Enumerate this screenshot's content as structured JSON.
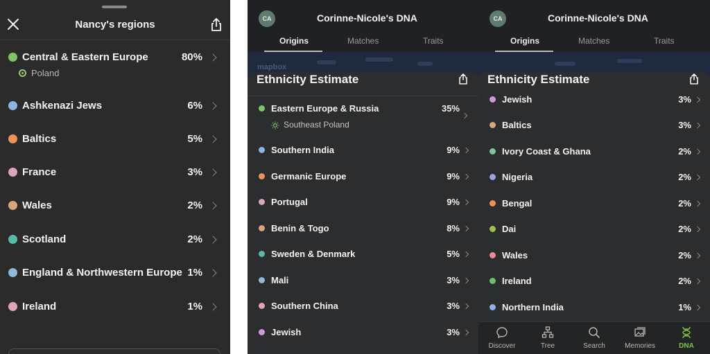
{
  "left_panel": {
    "title": "Nancy's regions",
    "close_icon": "close-icon",
    "share_icon": "share-icon",
    "regions": [
      {
        "name": "Central & Eastern Europe",
        "percent": "80%",
        "color": "#7ec46a",
        "sub": "Poland"
      },
      {
        "name": "Ashkenazi Jews",
        "percent": "6%",
        "color": "#8db4e6"
      },
      {
        "name": "Baltics",
        "percent": "5%",
        "color": "#ee9257"
      },
      {
        "name": "France",
        "percent": "3%",
        "color": "#d9a5c0"
      },
      {
        "name": "Wales",
        "percent": "2%",
        "color": "#d9a777"
      },
      {
        "name": "Scotland",
        "percent": "2%",
        "color": "#57b9a6"
      },
      {
        "name": "England & Northwestern Europe",
        "percent": "1%",
        "color": "#8fb9d6"
      },
      {
        "name": "Ireland",
        "percent": "1%",
        "color": "#e0a4b5"
      }
    ]
  },
  "middle_panel": {
    "avatar": "CA",
    "title": "Corinne-Nicole's DNA",
    "tabs": [
      "Origins",
      "Matches",
      "Traits"
    ],
    "active_tab": "Origins",
    "map_attribution": "mapbox",
    "sheet_title": "Ethnicity Estimate",
    "ethnicities": [
      {
        "name": "Eastern Europe & Russia",
        "percent": "35%",
        "color": "#7ec46a",
        "sub": "Southeast Poland"
      },
      {
        "name": "Southern India",
        "percent": "9%",
        "color": "#8db4e6"
      },
      {
        "name": "Germanic Europe",
        "percent": "9%",
        "color": "#ee9257"
      },
      {
        "name": "Portugal",
        "percent": "9%",
        "color": "#d9a5c0"
      },
      {
        "name": "Benin & Togo",
        "percent": "8%",
        "color": "#d9a777"
      },
      {
        "name": "Sweden & Denmark",
        "percent": "5%",
        "color": "#57b9a6"
      },
      {
        "name": "Mali",
        "percent": "3%",
        "color": "#8fb9d6"
      },
      {
        "name": "Southern China",
        "percent": "3%",
        "color": "#e0a4b5"
      },
      {
        "name": "Jewish",
        "percent": "3%",
        "color": "#cf9ad8"
      }
    ]
  },
  "right_panel": {
    "avatar": "CA",
    "title": "Corinne-Nicole's DNA",
    "tabs": [
      "Origins",
      "Matches",
      "Traits"
    ],
    "active_tab": "Origins",
    "sheet_title": "Ethnicity Estimate",
    "ethnicities": [
      {
        "name": "Jewish",
        "percent": "3%",
        "color": "#cf9ad8"
      },
      {
        "name": "Baltics",
        "percent": "3%",
        "color": "#d9a777"
      },
      {
        "name": "Ivory Coast & Ghana",
        "percent": "2%",
        "color": "#84c29a"
      },
      {
        "name": "Nigeria",
        "percent": "2%",
        "color": "#9aa6e0"
      },
      {
        "name": "Bengal",
        "percent": "2%",
        "color": "#ee9257"
      },
      {
        "name": "Dai",
        "percent": "2%",
        "color": "#9ec24f"
      },
      {
        "name": "Wales",
        "percent": "2%",
        "color": "#ec8a98"
      },
      {
        "name": "Ireland",
        "percent": "2%",
        "color": "#6cc070"
      },
      {
        "name": "Northern India",
        "percent": "1%",
        "color": "#8db4e6"
      }
    ],
    "bottom_nav": [
      {
        "label": "Discover",
        "icon": "discover-icon"
      },
      {
        "label": "Tree",
        "icon": "tree-icon"
      },
      {
        "label": "Search",
        "icon": "search-icon"
      },
      {
        "label": "Memories",
        "icon": "memories-icon"
      },
      {
        "label": "DNA",
        "icon": "dna-icon",
        "active": true
      }
    ]
  }
}
